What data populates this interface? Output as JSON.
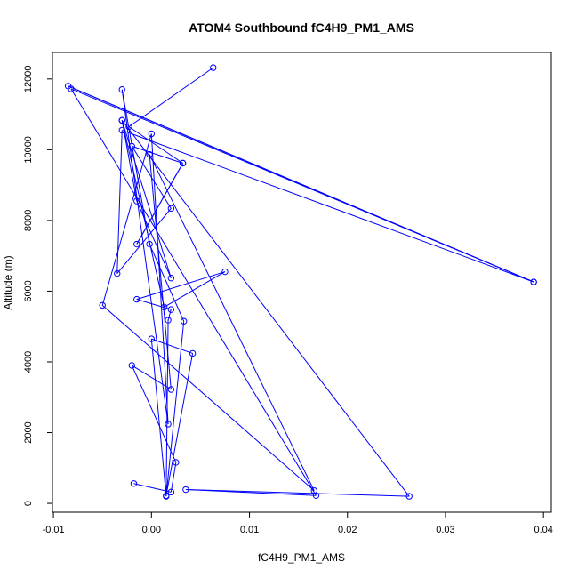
{
  "chart_data": {
    "type": "line",
    "title": "ATOM4 Southbound fC4H9_PM1_AMS",
    "xlabel": "fC4H9_PM1_AMS",
    "ylabel": "Altitude (m)",
    "xlim": [
      -0.0101,
      0.0408
    ],
    "ylim": [
      -250,
      12750
    ],
    "x_ticks": [
      -0.01,
      0.0,
      0.01,
      0.02,
      0.03,
      0.04
    ],
    "x_tick_labels": [
      "-0.01",
      "0.00",
      "0.01",
      "0.02",
      "0.03",
      "0.04"
    ],
    "y_ticks": [
      0,
      2000,
      4000,
      6000,
      8000,
      10000,
      12000
    ],
    "y_tick_labels": [
      "0",
      "2000",
      "4000",
      "6000",
      "8000",
      "10000",
      "12000"
    ],
    "grid": false,
    "legend": "none",
    "markers": "open circles",
    "color": "#0000ff",
    "series": [
      {
        "points": [
          {
            "x": 0.0063,
            "y": 12320
          },
          {
            "x": -0.0023,
            "y": 10650
          },
          {
            "x": 0.0032,
            "y": 9620
          },
          {
            "x": -0.0015,
            "y": 7330
          },
          {
            "x": 0.0032,
            "y": 9620
          },
          {
            "x": -0.002,
            "y": 10100
          },
          {
            "x": 0.002,
            "y": 8340
          },
          {
            "x": -0.0035,
            "y": 6500
          },
          {
            "x": -0.003,
            "y": 10550
          },
          {
            "x": 0.039,
            "y": 6260
          },
          {
            "x": -0.0085,
            "y": 11800
          },
          {
            "x": 0.039,
            "y": 6260
          },
          {
            "x": -0.0082,
            "y": 11720
          },
          {
            "x": 0.0168,
            "y": 220
          },
          {
            "x": 0.0035,
            "y": 390
          },
          {
            "x": 0.0263,
            "y": 200
          },
          {
            "x": -0.003,
            "y": 10830
          },
          {
            "x": 0.002,
            "y": 6370
          },
          {
            "x": -0.0015,
            "y": 8550
          },
          {
            "x": -0.003,
            "y": 10830
          },
          {
            "x": 0.0013,
            "y": 5550
          },
          {
            "x": 0.0075,
            "y": 6550
          },
          {
            "x": -0.0015,
            "y": 5770
          },
          {
            "x": 0.002,
            "y": 5480
          },
          {
            "x": 0.0017,
            "y": 5180
          },
          {
            "x": 0.0015,
            "y": 220
          },
          {
            "x": 0.0042,
            "y": 4240
          },
          {
            "x": 0.0,
            "y": 4650
          },
          {
            "x": 0.0015,
            "y": 200
          },
          {
            "x": 0.0033,
            "y": 5150
          },
          {
            "x": -0.0002,
            "y": 7330
          },
          {
            "x": -0.003,
            "y": 11700
          },
          {
            "x": 0.0017,
            "y": 2240
          },
          {
            "x": 0.0,
            "y": 10450
          },
          {
            "x": -0.005,
            "y": 5600
          },
          {
            "x": 0.0166,
            "y": 360
          },
          {
            "x": -0.0002,
            "y": 9870
          },
          {
            "x": 0.002,
            "y": 3220
          },
          {
            "x": -0.002,
            "y": 3900
          },
          {
            "x": 0.0025,
            "y": 1160
          },
          {
            "x": 0.002,
            "y": 320
          },
          {
            "x": -0.0018,
            "y": 560
          }
        ]
      }
    ]
  }
}
